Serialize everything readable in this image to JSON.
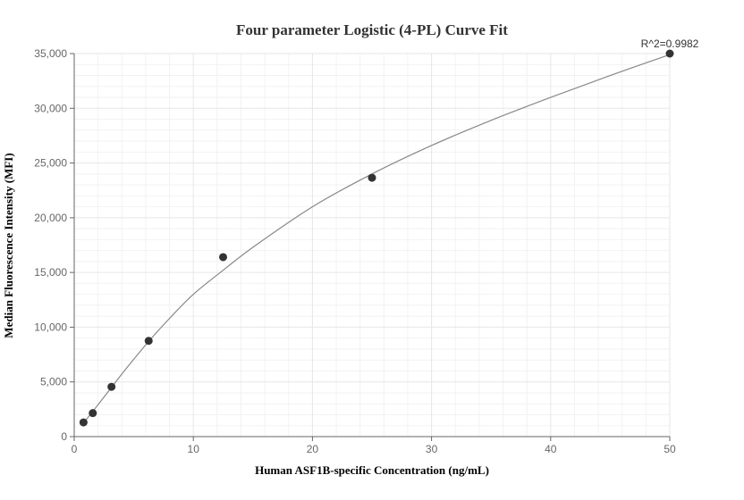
{
  "chart_data": {
    "type": "scatter",
    "title": "Four parameter Logistic (4-PL) Curve Fit",
    "xlabel": "Human ASF1B-specific Concentration (ng/mL)",
    "ylabel": "Median Fluorescence Intensity (MFI)",
    "xlim": [
      0,
      50
    ],
    "ylim": [
      0,
      35000
    ],
    "x_ticks": [
      0,
      10,
      20,
      30,
      40,
      50
    ],
    "y_ticks": [
      0,
      5000,
      10000,
      15000,
      20000,
      25000,
      30000,
      35000
    ],
    "x_tick_labels": [
      "0",
      "10",
      "20",
      "30",
      "40",
      "50"
    ],
    "y_tick_labels": [
      "0",
      "5,000",
      "10,000",
      "15,000",
      "20,000",
      "25,000",
      "30,000",
      "35,000"
    ],
    "grid": true,
    "points": [
      {
        "x": 0.78,
        "y": 1300
      },
      {
        "x": 1.56,
        "y": 2150
      },
      {
        "x": 3.13,
        "y": 4550
      },
      {
        "x": 6.25,
        "y": 8750
      },
      {
        "x": 12.5,
        "y": 16400
      },
      {
        "x": 25,
        "y": 23650
      },
      {
        "x": 50,
        "y": 35000
      }
    ],
    "fit_curve": [
      {
        "x": 0.78,
        "y": 1250
      },
      {
        "x": 1.56,
        "y": 2300
      },
      {
        "x": 3.13,
        "y": 4500
      },
      {
        "x": 4.5,
        "y": 6400
      },
      {
        "x": 6.25,
        "y": 8700
      },
      {
        "x": 8,
        "y": 10800
      },
      {
        "x": 10,
        "y": 13000
      },
      {
        "x": 12.5,
        "y": 15200
      },
      {
        "x": 15,
        "y": 17300
      },
      {
        "x": 20,
        "y": 21000
      },
      {
        "x": 25,
        "y": 24000
      },
      {
        "x": 30,
        "y": 26600
      },
      {
        "x": 35,
        "y": 28900
      },
      {
        "x": 40,
        "y": 31000
      },
      {
        "x": 45,
        "y": 33000
      },
      {
        "x": 50,
        "y": 34900
      }
    ],
    "annotation": "R^2=0.9982",
    "colors": {
      "marker": "#333333",
      "curve": "#888888",
      "grid": "#e6e6e6",
      "axis": "#666666"
    }
  }
}
